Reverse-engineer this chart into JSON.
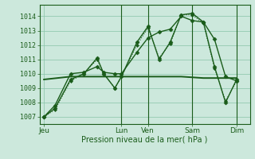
{
  "background_color": "#cce8dc",
  "grid_color": "#88c4a8",
  "line_color": "#1a5c1a",
  "ylabel": "Pression niveau de la mer( hPa )",
  "ylim": [
    1006.5,
    1014.8
  ],
  "yticks": [
    1007,
    1008,
    1009,
    1010,
    1011,
    1012,
    1013,
    1014
  ],
  "xtick_labels": [
    "Jeu",
    "Lun",
    "Ven",
    "Sam",
    "Dim"
  ],
  "xtick_positions": [
    0,
    35,
    47,
    67,
    87
  ],
  "xlim": [
    -2,
    93
  ],
  "vlines": [
    35,
    47,
    67,
    87
  ],
  "series": [
    {
      "x": [
        0,
        5,
        12,
        18,
        24,
        27,
        32,
        35,
        42,
        47,
        52,
        57,
        62,
        67,
        72,
        77,
        82,
        87
      ],
      "y": [
        1007.0,
        1007.6,
        1009.6,
        1010.0,
        1011.1,
        1010.0,
        1009.0,
        1009.8,
        1012.2,
        1013.3,
        1011.0,
        1012.2,
        1014.1,
        1014.2,
        1013.6,
        1010.5,
        1008.0,
        1009.6
      ],
      "style": "solid",
      "marker": "D",
      "markersize": 2.5,
      "linewidth": 1.0
    },
    {
      "x": [
        0,
        5,
        12,
        18,
        24,
        27,
        32,
        35,
        42,
        47,
        52,
        57,
        62,
        67,
        72,
        77,
        82,
        87
      ],
      "y": [
        1007.0,
        1007.8,
        1010.0,
        1010.1,
        1010.5,
        1010.1,
        1010.0,
        1010.0,
        1011.5,
        1012.5,
        1012.9,
        1013.1,
        1014.0,
        1013.7,
        1013.6,
        1012.4,
        1009.8,
        1009.5
      ],
      "style": "solid",
      "marker": "D",
      "markersize": 2.5,
      "linewidth": 1.0
    },
    {
      "x": [
        0,
        5,
        12,
        18,
        24,
        27,
        32,
        35,
        42,
        47,
        52,
        57,
        62,
        67,
        72,
        77,
        82,
        87
      ],
      "y": [
        1007.0,
        1007.5,
        1009.5,
        1010.0,
        1011.0,
        1010.0,
        1009.0,
        1009.8,
        1012.0,
        1013.2,
        1011.1,
        1012.1,
        1014.1,
        1014.1,
        1013.5,
        1010.4,
        1008.1,
        1009.5
      ],
      "style": "dotted",
      "marker": "D",
      "markersize": 2.0,
      "linewidth": 0.8
    },
    {
      "x": [
        0,
        12,
        24,
        32,
        35,
        47,
        52,
        57,
        62,
        67,
        72,
        77,
        82,
        87
      ],
      "y": [
        1009.6,
        1009.8,
        1009.8,
        1009.8,
        1009.8,
        1009.8,
        1009.8,
        1009.8,
        1009.8,
        1009.75,
        1009.7,
        1009.7,
        1009.7,
        1009.7
      ],
      "style": "solid",
      "marker": null,
      "markersize": 0,
      "linewidth": 1.4
    }
  ]
}
